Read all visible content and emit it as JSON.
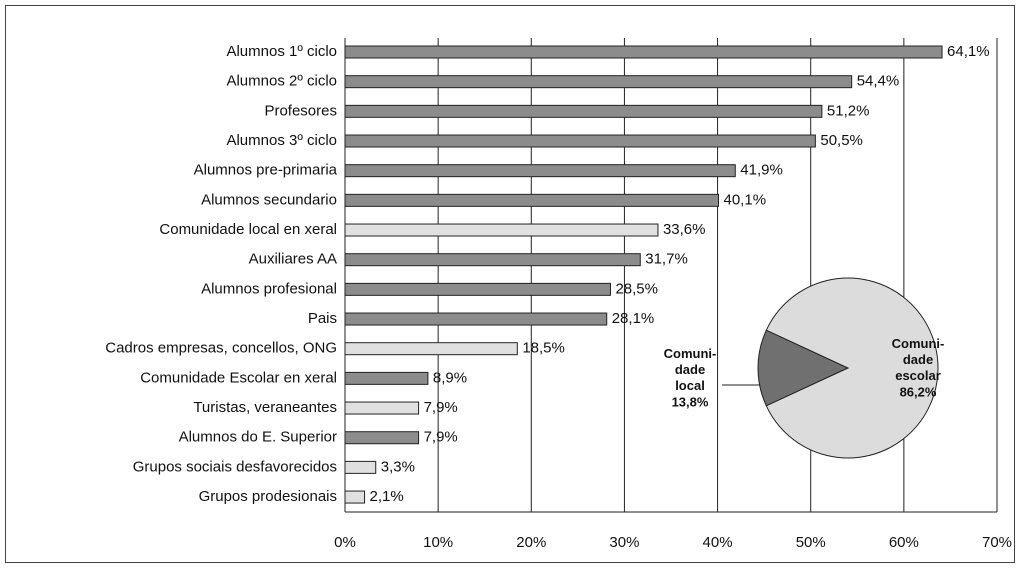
{
  "chart_data": [
    {
      "type": "bar",
      "orientation": "horizontal",
      "categories": [
        "Alumnos 1º ciclo",
        "Alumnos 2º ciclo",
        "Profesores",
        "Alumnos 3º ciclo",
        "Alumnos pre-primaria",
        "Alumnos secundario",
        "Comunidade local en xeral",
        "Auxiliares AA",
        "Alumnos profesional",
        "Pais",
        "Cadros empresas, concellos, ONG",
        "Comunidade Escolar en xeral",
        "Turistas, veraneantes",
        "Alumnos do E. Superior",
        "Grupos sociais desfavorecidos",
        "Grupos prodesionais"
      ],
      "values": [
        64.1,
        54.4,
        51.2,
        50.5,
        41.9,
        40.1,
        33.6,
        31.7,
        28.5,
        28.1,
        18.5,
        8.9,
        7.9,
        7.9,
        3.3,
        2.1
      ],
      "value_labels": [
        "64,1%",
        "54,4%",
        "51,2%",
        "50,5%",
        "41,9%",
        "40,1%",
        "33,6%",
        "31,7%",
        "28,5%",
        "28,1%",
        "18,5%",
        "8,9%",
        "7,9%",
        "7,9%",
        "3,3%",
        "2,1%"
      ],
      "colors": [
        "#8c8c8c",
        "#8c8c8c",
        "#8c8c8c",
        "#8c8c8c",
        "#8c8c8c",
        "#8c8c8c",
        "#e0e0e0",
        "#8c8c8c",
        "#8c8c8c",
        "#8c8c8c",
        "#e0e0e0",
        "#8c8c8c",
        "#e0e0e0",
        "#8c8c8c",
        "#e0e0e0",
        "#e0e0e0"
      ],
      "xlim": [
        0,
        70
      ],
      "xticks": [
        {
          "value": 0,
          "label": "0%"
        },
        {
          "value": 10,
          "label": "10%"
        },
        {
          "value": 20,
          "label": "20%"
        },
        {
          "value": 30,
          "label": "30%"
        },
        {
          "value": 40,
          "label": "40%"
        },
        {
          "value": 50,
          "label": "50%"
        },
        {
          "value": 60,
          "label": "60%"
        },
        {
          "value": 70,
          "label": "70%"
        }
      ],
      "grid": true
    },
    {
      "type": "pie",
      "categories": [
        "Comuni-\ndade\nlocal",
        "Comuni-\ndade\nescolar"
      ],
      "values": [
        13.8,
        86.2
      ],
      "value_labels": [
        "13,8%",
        "86,2%"
      ],
      "colors": [
        "#707070",
        "#dcdcdc"
      ]
    }
  ]
}
